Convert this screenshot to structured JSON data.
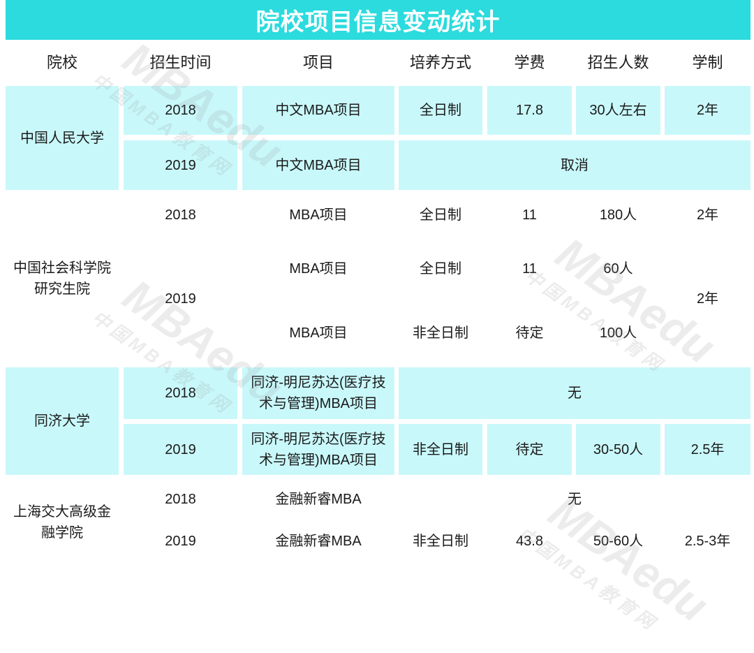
{
  "title": "院校项目信息变动统计",
  "headers": [
    "院校",
    "招生时间",
    "项目",
    "培养方式",
    "学费",
    "招生人数",
    "学制"
  ],
  "watermark": {
    "brand": "MBAedu",
    "site": "中国MBA教育网"
  },
  "colors": {
    "title_bar": "#2bdbde",
    "shaded_cell": "#c9f8fa"
  },
  "schools": [
    {
      "name": "中国人民大学",
      "rows": [
        {
          "year": "2018",
          "program": "中文MBA项目",
          "mode": "全日制",
          "fee": "17.8",
          "enrollment": "30人左右",
          "duration": "2年"
        },
        {
          "year": "2019",
          "program": "中文MBA项目",
          "note": "取消"
        }
      ]
    },
    {
      "name": "中国社会科学院研究生院",
      "rows": [
        {
          "year": "2018",
          "program": "MBA项目",
          "mode": "全日制",
          "fee": "11",
          "enrollment": "180人",
          "duration": "2年"
        },
        {
          "year": "2019",
          "duration": "2年",
          "tracks": [
            {
              "program": "MBA项目",
              "mode": "全日制",
              "fee": "11",
              "enrollment": "60人"
            },
            {
              "program": "MBA项目",
              "mode": "非全日制",
              "fee": "待定",
              "enrollment": "100人"
            }
          ]
        }
      ]
    },
    {
      "name": "同济大学",
      "rows": [
        {
          "year": "2018",
          "program": "同济-明尼苏达(医疗技术与管理)MBA项目",
          "note": "无"
        },
        {
          "year": "2019",
          "program": "同济-明尼苏达(医疗技术与管理)MBA项目",
          "mode": "非全日制",
          "fee": "待定",
          "enrollment": "30-50人",
          "duration": "2.5年"
        }
      ]
    },
    {
      "name": "上海交大高级金融学院",
      "rows": [
        {
          "year": "2018",
          "program": "金融新睿MBA",
          "note": "无"
        },
        {
          "year": "2019",
          "program": "金融新睿MBA",
          "mode": "非全日制",
          "fee": "43.8",
          "enrollment": "50-60人",
          "duration": "2.5-3年"
        }
      ]
    }
  ]
}
